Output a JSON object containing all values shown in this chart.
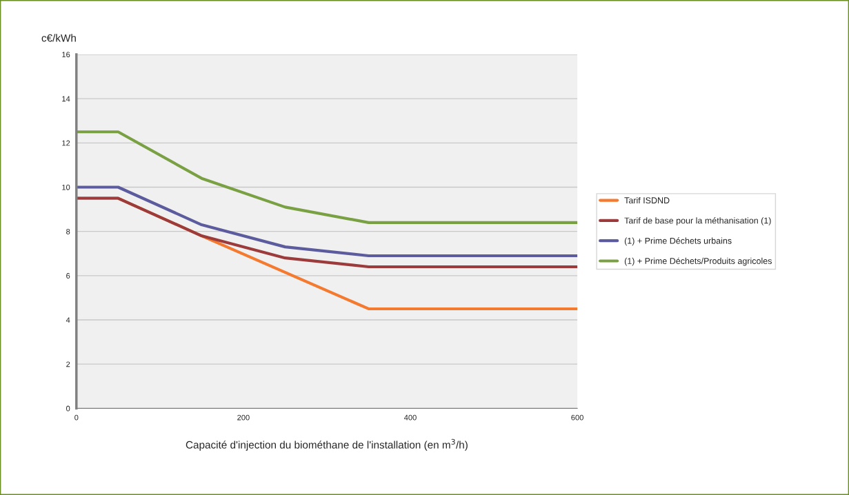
{
  "chart_data": {
    "type": "line",
    "ylabel": "c€/kWh",
    "xlabel": "Capacité d'injection du biométhane de l'installation (en m$^{3}$/h)",
    "xlim": [
      0,
      600
    ],
    "xticks": [
      0,
      200,
      400,
      600
    ],
    "ylim": [
      0,
      16
    ],
    "yticks": [
      0,
      2,
      4,
      6,
      8,
      10,
      12,
      14,
      16
    ],
    "grid": "y",
    "legend": "right",
    "marker": "none",
    "line_style": "solid",
    "series": [
      {
        "name": "Tarif ISDND",
        "color": "#f47a30",
        "x": [
          0,
          50,
          150,
          350,
          600
        ],
        "values": [
          9.5,
          9.5,
          7.8,
          4.5,
          4.5
        ]
      },
      {
        "name": "Tarif de base pour la méthanisation (1)",
        "color": "#9c3b3b",
        "x": [
          0,
          50,
          150,
          250,
          350,
          600
        ],
        "values": [
          9.5,
          9.5,
          7.8,
          6.8,
          6.4,
          6.4
        ]
      },
      {
        "name": "(1) + Prime Déchets urbains",
        "color": "#5b5b9e",
        "x": [
          0,
          50,
          150,
          250,
          350,
          600
        ],
        "values": [
          10,
          10,
          8.3,
          7.3,
          6.9,
          6.9
        ]
      },
      {
        "name": "(1) + Prime Déchets/Produits agricoles",
        "color": "#79a042",
        "x": [
          0,
          50,
          150,
          250,
          350,
          600
        ],
        "values": [
          12.5,
          12.5,
          10.4,
          9.1,
          8.4,
          8.4
        ]
      }
    ]
  }
}
